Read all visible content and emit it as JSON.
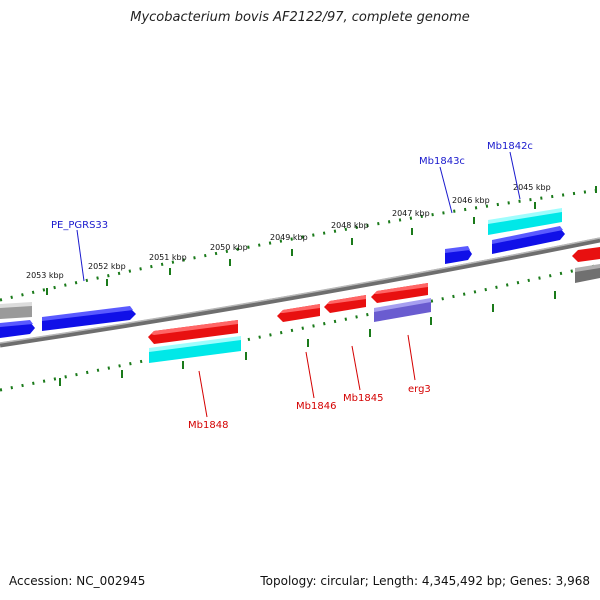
{
  "title": "Mycobacterium bovis AF2122/97, complete genome",
  "footer": {
    "accession": "Accession: NC_002945",
    "summary": "Topology: circular; Length: 4,345,492 bp; Genes: 3,968"
  },
  "kbp_labels": [
    "2045 kbp",
    "2046 kbp",
    "2047 kbp",
    "2048 kbp",
    "2049 kbp",
    "2050 kbp",
    "2051 kbp",
    "2052 kbp",
    "2053 kbp"
  ],
  "gene_labels": {
    "forward": [
      "PE_PGRS33",
      "Mb1843c",
      "Mb1842c"
    ],
    "reverse": [
      "Mb1848",
      "Mb1846",
      "Mb1845",
      "erg3"
    ]
  },
  "colors": {
    "forward_cds": "#1010e8",
    "reverse_cds": "#e81010",
    "cyan_feature": "#00e8e8",
    "purple_feature": "#7060d0",
    "grey_feature": "#808080",
    "backbone": "#808080",
    "tick": "#1a7a1a",
    "forward_label": "#1a1acd",
    "reverse_label": "#d40000"
  }
}
